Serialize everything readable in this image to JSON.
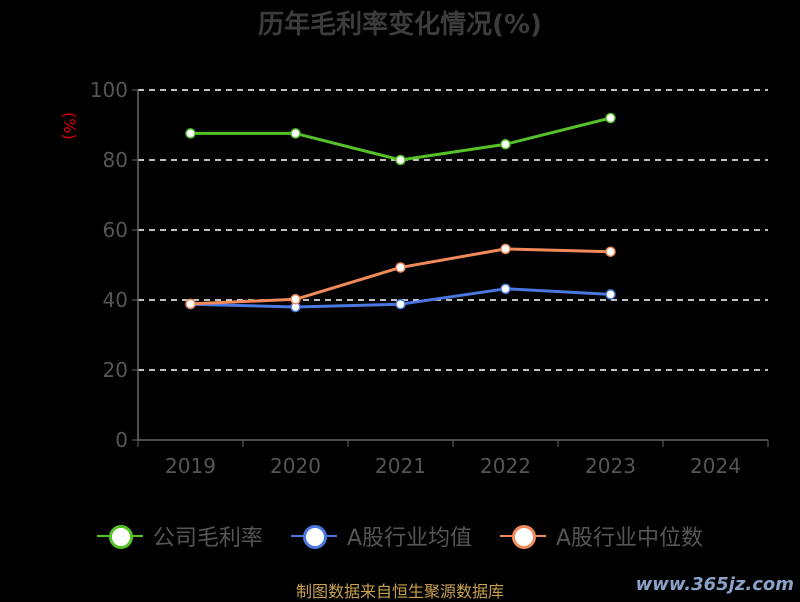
{
  "title": "历年毛利率变化情况(%)",
  "unit_label": "(%)",
  "footer": "制图数据来自恒生聚源数据库",
  "watermark": "www.365jz.com",
  "chart_data": {
    "type": "line",
    "title": "历年毛利率变化情况(%)",
    "ylabel": "(%)",
    "categories": [
      "2019",
      "2020",
      "2021",
      "2022",
      "2023",
      "2024"
    ],
    "ylim": [
      0,
      100
    ],
    "yticks": [
      0,
      20,
      40,
      60,
      80,
      100
    ],
    "grid": true,
    "legend_position": "bottom",
    "series": [
      {
        "name": "公司毛利率",
        "color": "#55c22a",
        "values": [
          87.6,
          87.6,
          80.0,
          84.5,
          92.0,
          null
        ]
      },
      {
        "name": "A股行业均值",
        "color": "#4a78e0",
        "values": [
          38.8,
          38.0,
          38.8,
          43.2,
          41.6,
          null
        ]
      },
      {
        "name": "A股行业中位数",
        "color": "#f08a5a",
        "values": [
          38.9,
          40.2,
          49.3,
          54.6,
          53.8,
          null
        ]
      }
    ]
  }
}
